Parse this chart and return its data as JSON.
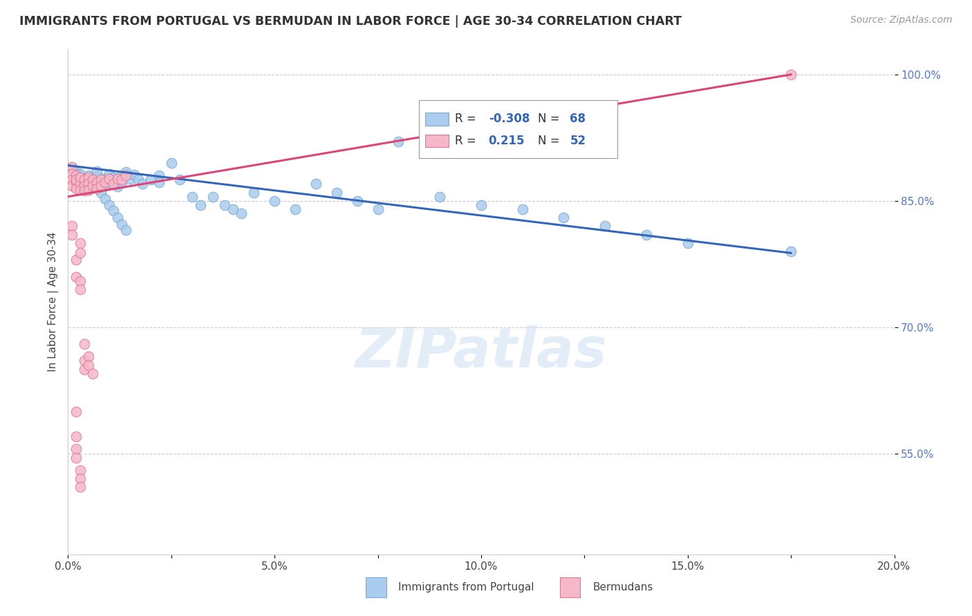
{
  "title": "IMMIGRANTS FROM PORTUGAL VS BERMUDAN IN LABOR FORCE | AGE 30-34 CORRELATION CHART",
  "source": "Source: ZipAtlas.com",
  "ylabel": "In Labor Force | Age 30-34",
  "xlim": [
    0.0,
    0.2
  ],
  "ylim": [
    0.43,
    1.03
  ],
  "xtick_labels": [
    "0.0%",
    "",
    "5.0%",
    "",
    "10.0%",
    "",
    "15.0%",
    "",
    "20.0%"
  ],
  "xtick_vals": [
    0.0,
    0.025,
    0.05,
    0.075,
    0.1,
    0.125,
    0.15,
    0.175,
    0.2
  ],
  "ytick_right_labels": [
    "100.0%",
    "85.0%",
    "70.0%",
    "55.0%"
  ],
  "ytick_vals": [
    1.0,
    0.85,
    0.7,
    0.55
  ],
  "blue_color": "#aaccee",
  "blue_edge": "#7aaad0",
  "pink_color": "#f5b8c8",
  "pink_edge": "#e07898",
  "blue_line_color": "#3366bb",
  "pink_line_color": "#dd4477",
  "legend_R_blue": "-0.308",
  "legend_N_blue": "68",
  "legend_R_pink": "0.215",
  "legend_N_pink": "52",
  "watermark": "ZIPatlas",
  "blue_scatter_x": [
    0.001,
    0.001,
    0.002,
    0.002,
    0.003,
    0.003,
    0.003,
    0.004,
    0.004,
    0.005,
    0.005,
    0.005,
    0.006,
    0.006,
    0.007,
    0.007,
    0.007,
    0.008,
    0.008,
    0.009,
    0.009,
    0.01,
    0.01,
    0.011,
    0.011,
    0.012,
    0.012,
    0.013,
    0.013,
    0.014,
    0.015,
    0.016,
    0.017,
    0.018,
    0.02,
    0.022,
    0.022,
    0.025,
    0.027,
    0.03,
    0.032,
    0.035,
    0.038,
    0.04,
    0.042,
    0.045,
    0.05,
    0.055,
    0.06,
    0.065,
    0.07,
    0.075,
    0.08,
    0.09,
    0.1,
    0.11,
    0.12,
    0.13,
    0.14,
    0.15,
    0.008,
    0.009,
    0.01,
    0.011,
    0.012,
    0.013,
    0.014,
    0.175
  ],
  "blue_scatter_y": [
    0.89,
    0.88,
    0.885,
    0.875,
    0.878,
    0.87,
    0.882,
    0.876,
    0.868,
    0.88,
    0.872,
    0.863,
    0.875,
    0.868,
    0.879,
    0.871,
    0.885,
    0.873,
    0.866,
    0.877,
    0.869,
    0.882,
    0.874,
    0.878,
    0.87,
    0.875,
    0.867,
    0.88,
    0.872,
    0.884,
    0.876,
    0.881,
    0.875,
    0.87,
    0.875,
    0.88,
    0.872,
    0.895,
    0.875,
    0.855,
    0.845,
    0.855,
    0.845,
    0.84,
    0.835,
    0.86,
    0.85,
    0.84,
    0.87,
    0.86,
    0.85,
    0.84,
    0.92,
    0.855,
    0.845,
    0.84,
    0.83,
    0.82,
    0.81,
    0.8,
    0.86,
    0.852,
    0.845,
    0.838,
    0.83,
    0.822,
    0.815,
    0.79
  ],
  "pink_scatter_x": [
    0.001,
    0.001,
    0.001,
    0.001,
    0.002,
    0.002,
    0.002,
    0.002,
    0.003,
    0.003,
    0.003,
    0.003,
    0.004,
    0.004,
    0.004,
    0.005,
    0.005,
    0.005,
    0.006,
    0.006,
    0.007,
    0.007,
    0.008,
    0.008,
    0.009,
    0.01,
    0.011,
    0.012,
    0.013,
    0.014,
    0.001,
    0.001,
    0.002,
    0.002,
    0.003,
    0.003,
    0.003,
    0.003,
    0.004,
    0.004,
    0.004,
    0.005,
    0.005,
    0.006,
    0.002,
    0.002,
    0.002,
    0.002,
    0.003,
    0.003,
    0.003,
    0.175
  ],
  "pink_scatter_y": [
    0.89,
    0.882,
    0.875,
    0.868,
    0.88,
    0.872,
    0.865,
    0.875,
    0.878,
    0.87,
    0.863,
    0.878,
    0.875,
    0.868,
    0.862,
    0.878,
    0.87,
    0.863,
    0.875,
    0.868,
    0.872,
    0.865,
    0.875,
    0.868,
    0.872,
    0.876,
    0.87,
    0.876,
    0.875,
    0.88,
    0.82,
    0.81,
    0.78,
    0.76,
    0.755,
    0.745,
    0.8,
    0.788,
    0.68,
    0.66,
    0.65,
    0.665,
    0.655,
    0.645,
    0.6,
    0.57,
    0.555,
    0.545,
    0.53,
    0.52,
    0.51,
    1.0
  ],
  "background_color": "#ffffff",
  "grid_color": "#cccccc",
  "blue_line_x": [
    0.0,
    0.175
  ],
  "blue_line_y": [
    0.892,
    0.788
  ],
  "pink_line_x": [
    0.0,
    0.175
  ],
  "pink_line_y": [
    0.855,
    1.0
  ]
}
